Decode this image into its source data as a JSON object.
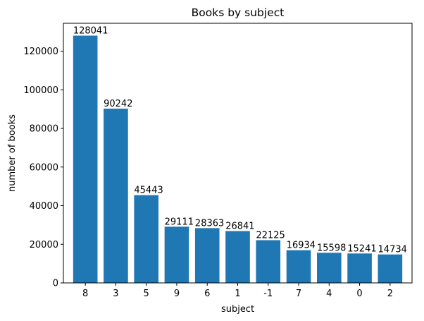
{
  "chart_data": {
    "type": "bar",
    "title": "Books by subject",
    "xlabel": "subject",
    "ylabel": "number of books",
    "categories": [
      "8",
      "3",
      "5",
      "9",
      "6",
      "1",
      "-1",
      "7",
      "4",
      "0",
      "2"
    ],
    "values": [
      128041,
      90242,
      45443,
      29111,
      28363,
      26841,
      22125,
      16934,
      15598,
      15241,
      14734
    ],
    "data_labels": [
      "128041",
      "90242",
      "45443",
      "29111",
      "28363",
      "26841",
      "22125",
      "16934",
      "15598",
      "15241",
      "14734"
    ],
    "y_ticks": [
      0,
      20000,
      40000,
      60000,
      80000,
      100000,
      120000
    ],
    "y_tick_labels": [
      "0",
      "20000",
      "40000",
      "60000",
      "80000",
      "100000",
      "120000"
    ],
    "ylim": [
      0,
      134443
    ],
    "grid": false,
    "bar_color": "#1f77b4"
  }
}
